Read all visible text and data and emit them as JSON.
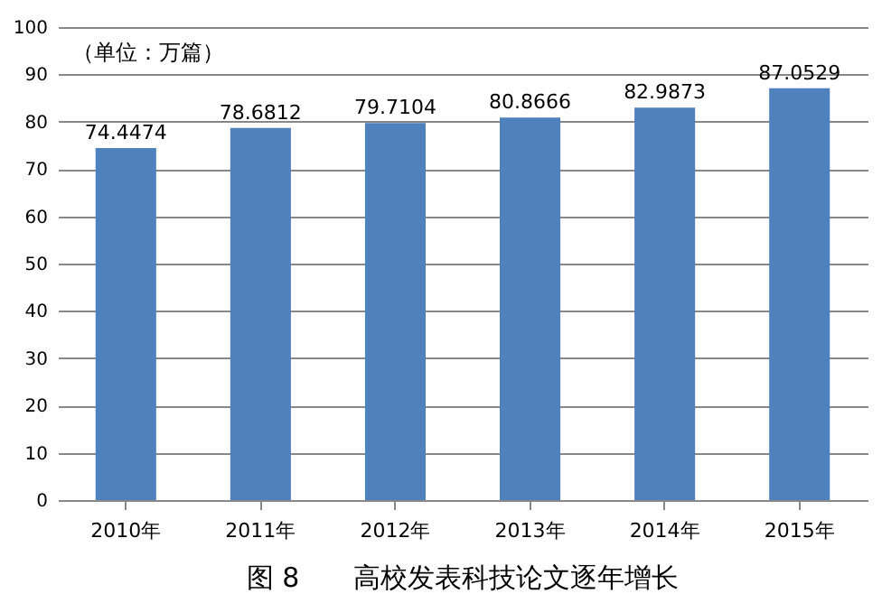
{
  "chart_data": {
    "type": "bar",
    "title": "图 8　　高校发表科技论文逐年增长",
    "categories": [
      "2010年",
      "2011年",
      "2012年",
      "2013年",
      "2014年",
      "2015年"
    ],
    "values": [
      74.4474,
      78.6812,
      79.7104,
      80.8666,
      82.9873,
      87.0529
    ],
    "color": "#4f81bd",
    "ylim": [
      0,
      100
    ],
    "yticks": [
      0,
      10,
      20,
      30,
      40,
      50,
      60,
      70,
      80,
      90,
      100
    ],
    "grid": "y",
    "data_labels": true,
    "annotations": [
      "（单位：万篇）"
    ]
  }
}
